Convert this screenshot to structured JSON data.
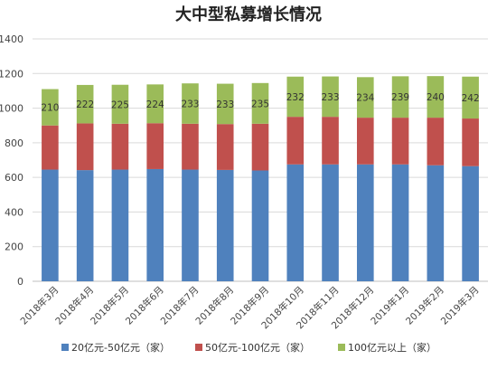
{
  "chart_data": {
    "type": "bar",
    "stacked": true,
    "title": "大中型私募增长情况",
    "categories": [
      "2018年3月",
      "2018年4月",
      "2018年5月",
      "2018年6月",
      "2018年7月",
      "2018年8月",
      "2018年9月",
      "2018年10月",
      "2018年11月",
      "2018年12月",
      "2019年1月",
      "2019年2月",
      "2019年3月"
    ],
    "series": [
      {
        "name": "20亿元-50亿元（家）",
        "color": "#4f81bd",
        "values": [
          645,
          642,
          645,
          648,
          645,
          643,
          640,
          675,
          675,
          675,
          675,
          670,
          665
        ],
        "data_labels": false
      },
      {
        "name": "50亿元-100亿元（家）",
        "color": "#c0504d",
        "values": [
          255,
          270,
          265,
          265,
          265,
          265,
          270,
          275,
          275,
          270,
          270,
          275,
          275
        ],
        "data_labels": false
      },
      {
        "name": "100亿元以上（家）",
        "color": "#9bbb59",
        "values": [
          210,
          222,
          225,
          224,
          233,
          233,
          235,
          232,
          233,
          234,
          239,
          240,
          242
        ],
        "data_labels": true
      }
    ],
    "ylim": [
      0,
      1400
    ],
    "yticks": [
      0,
      200,
      400,
      600,
      800,
      1000,
      1200,
      1400
    ],
    "grid": true,
    "legend_position": "bottom"
  }
}
